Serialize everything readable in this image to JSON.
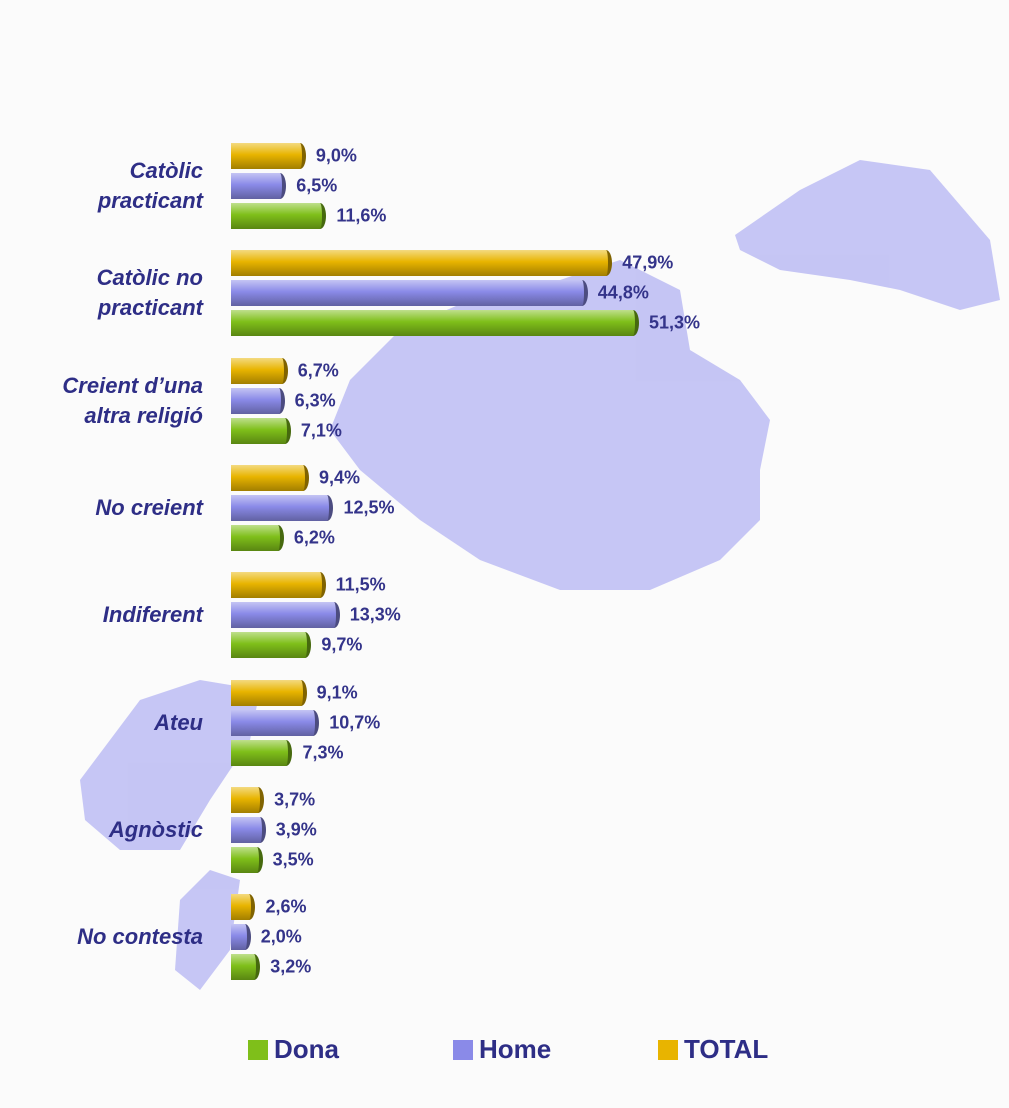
{
  "chart_data": {
    "type": "bar",
    "orientation": "horizontal",
    "categories": [
      "Catòlic practicant",
      "Catòlic no practicant",
      "Creient d’una altra religió",
      "No creient",
      "Indiferent",
      "Ateu",
      "Agnòstic",
      "No contesta"
    ],
    "series": [
      {
        "name": "Dona",
        "color": "#7fbf1a",
        "values": [
          11.6,
          51.3,
          7.1,
          6.2,
          9.7,
          7.3,
          3.5,
          3.2
        ],
        "value_labels": [
          "11,6%",
          "51,3%",
          "7,1%",
          "6,2%",
          "9,7%",
          "7,3%",
          "3,5%",
          "3,2%"
        ]
      },
      {
        "name": "Home",
        "color": "#8a8ae8",
        "values": [
          6.5,
          44.8,
          6.3,
          12.5,
          13.3,
          10.7,
          3.9,
          2.0
        ],
        "value_labels": [
          "6,5%",
          "44,8%",
          "6,3%",
          "12,5%",
          "13,3%",
          "10,7%",
          "3,9%",
          "2,0%"
        ]
      },
      {
        "name": "TOTAL",
        "color": "#e8b400",
        "values": [
          9.0,
          47.9,
          6.7,
          9.4,
          11.5,
          9.1,
          3.7,
          2.6
        ],
        "value_labels": [
          "9,0%",
          "47,9%",
          "6,7%",
          "9,4%",
          "11,5%",
          "9,1%",
          "3,7%",
          "2,6%"
        ]
      }
    ],
    "legend": "bottom"
  }
}
